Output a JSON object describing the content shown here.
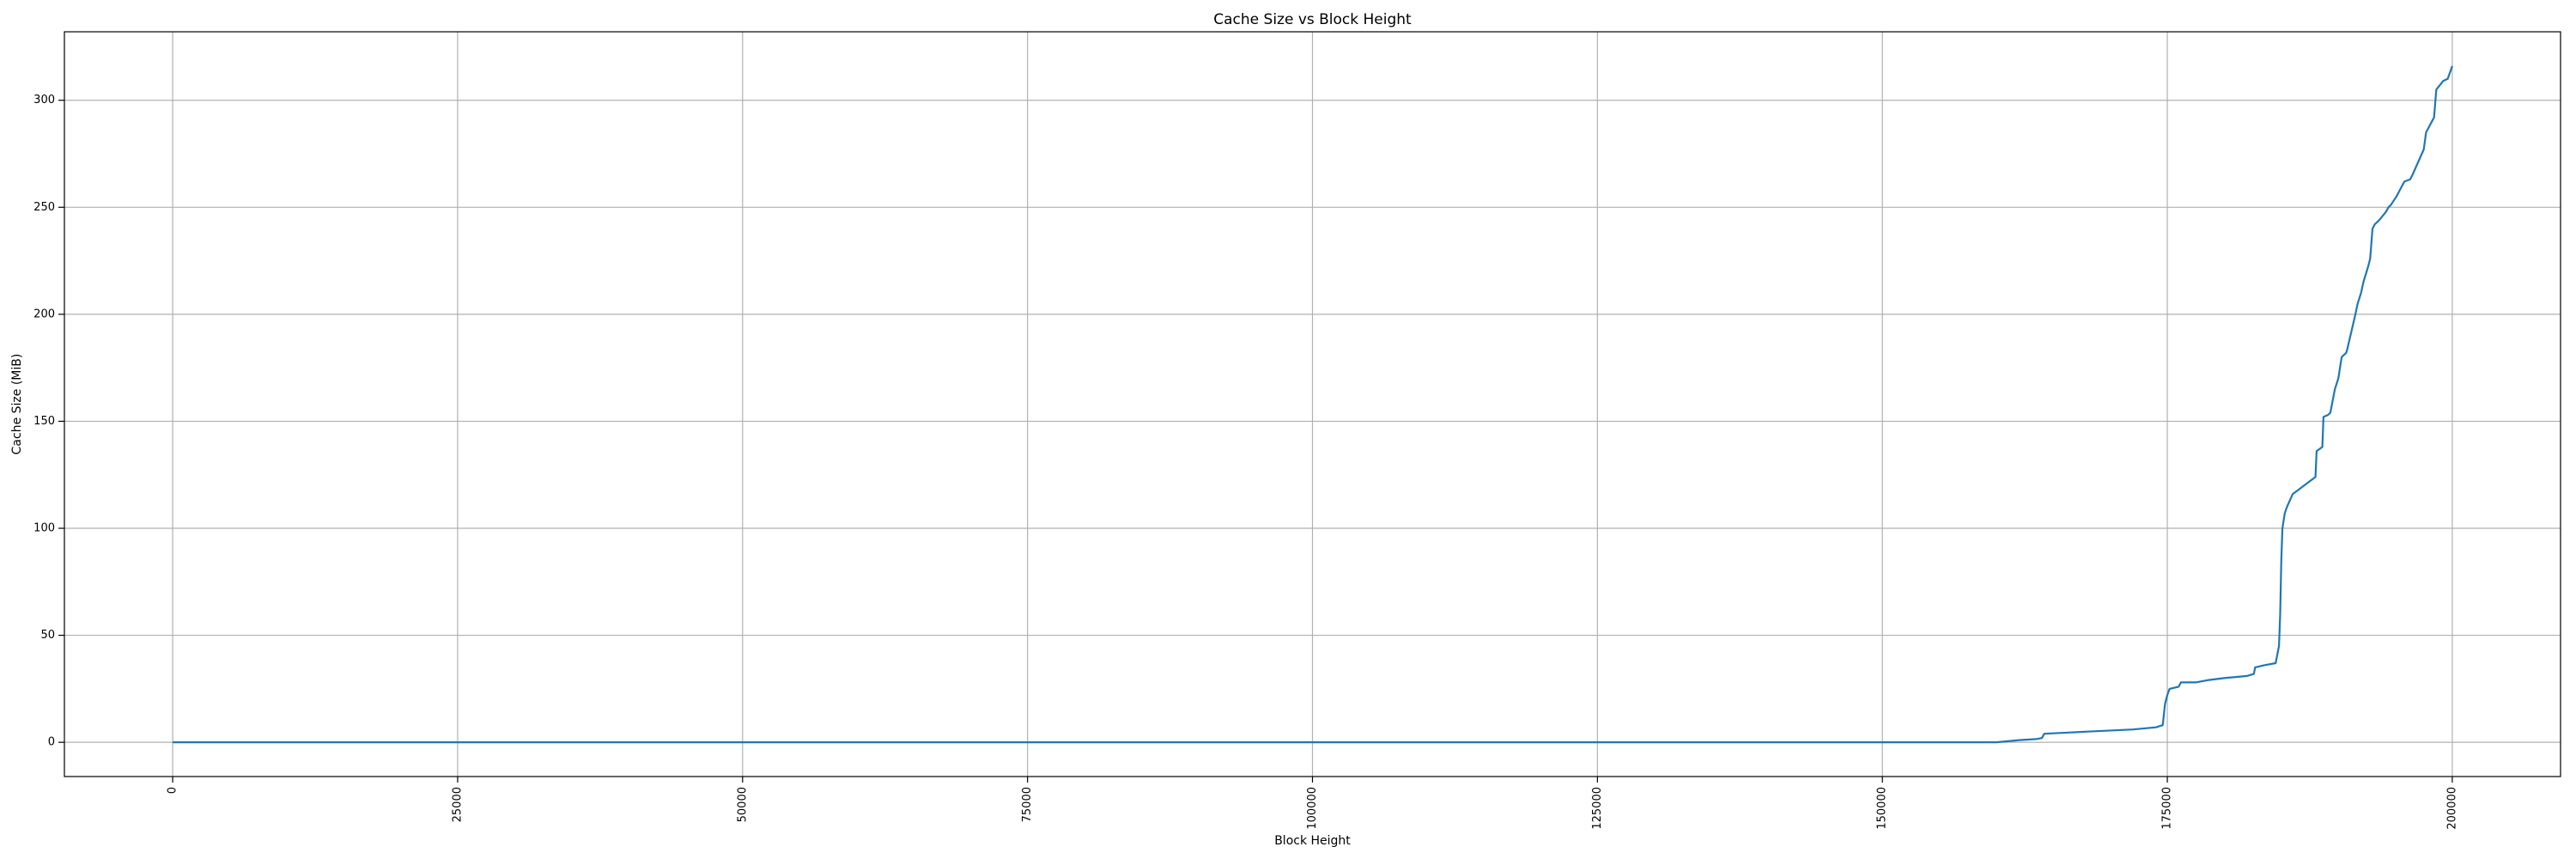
{
  "chart_data": {
    "type": "line",
    "title": "Cache Size vs Block Height",
    "xlabel": "Block Height",
    "ylabel": "Cache Size (MiB)",
    "xlim": [
      -9500,
      209500
    ],
    "ylim": [
      -16,
      332
    ],
    "x_ticks": [
      0,
      25000,
      50000,
      75000,
      100000,
      125000,
      150000,
      175000,
      200000
    ],
    "y_ticks": [
      0,
      50,
      100,
      150,
      200,
      250,
      300
    ],
    "x_tick_rotation": 90,
    "grid": true,
    "legend": "none",
    "color": "#1f77b4",
    "series": [
      {
        "x": [
          0,
          100000,
          160000,
          161000,
          162000,
          163500,
          164000,
          164200,
          168000,
          172000,
          174000,
          174600,
          174800,
          175000,
          175200,
          176000,
          176200,
          177500,
          178500,
          180000,
          182000,
          182600,
          182700,
          183500,
          184500,
          184800,
          184900,
          185000,
          185100,
          185300,
          185500,
          186000,
          186500,
          187000,
          188000,
          188100,
          188600,
          188700,
          189100,
          189300,
          189700,
          190000,
          190300,
          190700,
          190800,
          191500,
          191700,
          192000,
          192200,
          192600,
          192800,
          193000,
          193200,
          193600,
          194200,
          194400,
          194600,
          195100,
          195400,
          195800,
          196300,
          196500,
          197500,
          197700,
          198400,
          198600,
          198900,
          199200,
          199600,
          200000
        ],
        "y": [
          0,
          0,
          0,
          0.5,
          1,
          1.5,
          2,
          4,
          5,
          6,
          7,
          8,
          18,
          22,
          25,
          26,
          28,
          28,
          29,
          30,
          31,
          32,
          35,
          36,
          37,
          45,
          60,
          85,
          100,
          107,
          110,
          116,
          118,
          120,
          124,
          136,
          138,
          152,
          153,
          154,
          165,
          170,
          180,
          182,
          184,
          200,
          205,
          210,
          215,
          222,
          226,
          240,
          242,
          244,
          248,
          250,
          251,
          255,
          258,
          262,
          263,
          265,
          277,
          285,
          292,
          305,
          307,
          309,
          310,
          316
        ]
      }
    ]
  }
}
